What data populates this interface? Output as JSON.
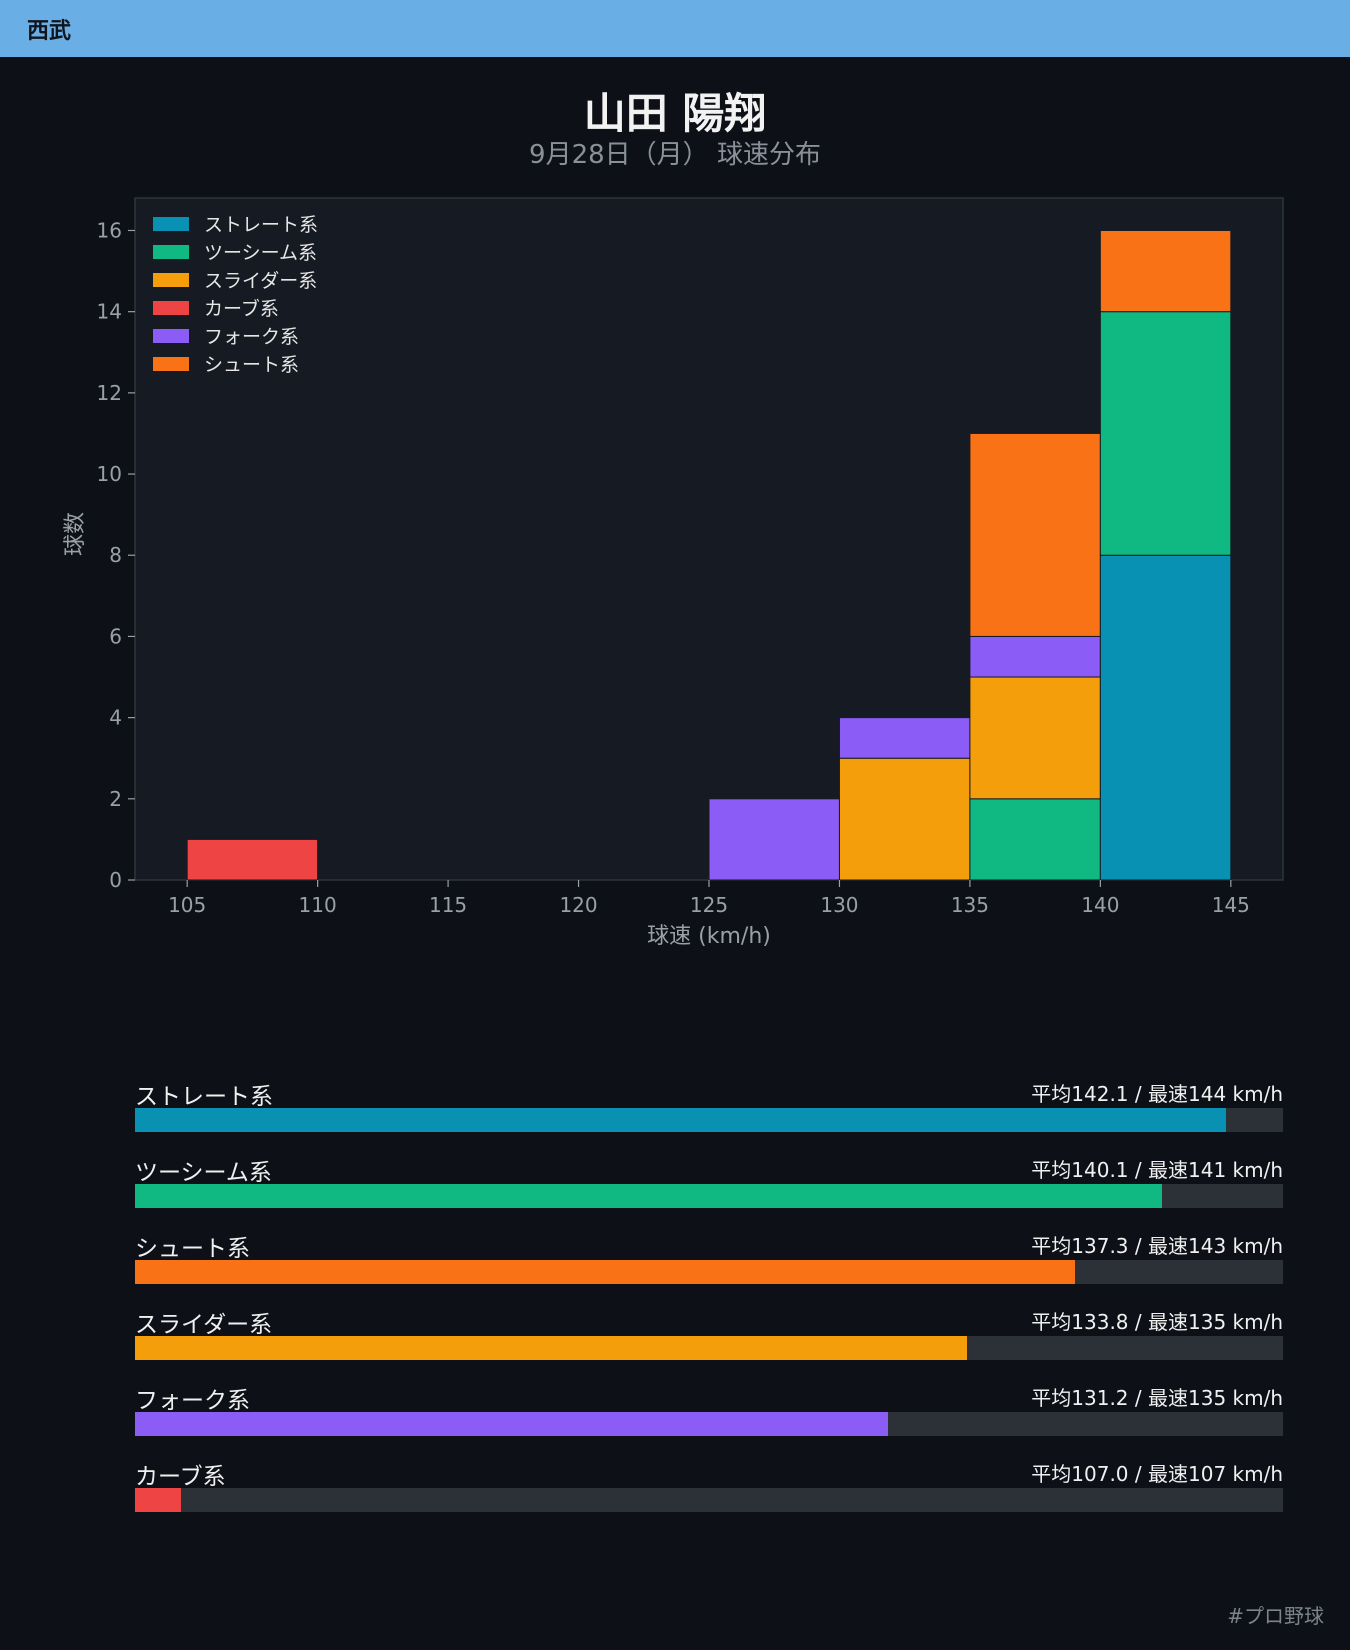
{
  "header": {
    "team": "西武"
  },
  "title": "山田 陽翔",
  "subtitle": "9月28日（月） 球速分布",
  "chart_data": {
    "type": "bar",
    "stacked": true,
    "xlabel": "球速 (km/h)",
    "ylabel": "球数",
    "xlim": [
      103,
      147
    ],
    "ylim": [
      0,
      16.8
    ],
    "xticks": [
      105,
      110,
      115,
      120,
      125,
      130,
      135,
      140,
      145
    ],
    "yticks": [
      0,
      2,
      4,
      6,
      8,
      10,
      12,
      14,
      16
    ],
    "bins": [
      [
        105,
        110
      ],
      [
        110,
        115
      ],
      [
        115,
        120
      ],
      [
        120,
        125
      ],
      [
        125,
        130
      ],
      [
        130,
        135
      ],
      [
        135,
        140
      ],
      [
        140,
        145
      ]
    ],
    "legend_position": "top-left",
    "grid": false,
    "series": [
      {
        "name": "ストレート系",
        "color": "#0891b2",
        "values": [
          0,
          0,
          0,
          0,
          0,
          0,
          0,
          8
        ]
      },
      {
        "name": "ツーシーム系",
        "color": "#10b981",
        "values": [
          0,
          0,
          0,
          0,
          0,
          0,
          2,
          6
        ]
      },
      {
        "name": "スライダー系",
        "color": "#f59e0b",
        "values": [
          0,
          0,
          0,
          0,
          0,
          3,
          3,
          0
        ]
      },
      {
        "name": "カーブ系",
        "color": "#ef4444",
        "values": [
          1,
          0,
          0,
          0,
          0,
          0,
          0,
          0
        ]
      },
      {
        "name": "フォーク系",
        "color": "#8b5cf6",
        "values": [
          0,
          0,
          0,
          0,
          2,
          1,
          1,
          0
        ]
      },
      {
        "name": "シュート系",
        "color": "#f97316",
        "values": [
          0,
          0,
          0,
          0,
          0,
          0,
          5,
          2
        ]
      }
    ]
  },
  "speed_summary": [
    {
      "name": "ストレート系",
      "color": "#0891b2",
      "avg": "142.1",
      "max": "144",
      "label": "平均142.1 / 最速144 km/h",
      "fill": 0.95
    },
    {
      "name": "ツーシーム系",
      "color": "#10b981",
      "avg": "140.1",
      "max": "141",
      "label": "平均140.1 / 最速141 km/h",
      "fill": 0.895
    },
    {
      "name": "シュート系",
      "color": "#f97316",
      "avg": "137.3",
      "max": "143",
      "label": "平均137.3 / 最速143 km/h",
      "fill": 0.819
    },
    {
      "name": "スライダー系",
      "color": "#f59e0b",
      "avg": "133.8",
      "max": "135",
      "label": "平均133.8 / 最速135 km/h",
      "fill": 0.725
    },
    {
      "name": "フォーク系",
      "color": "#8b5cf6",
      "avg": "131.2",
      "max": "135",
      "label": "平均131.2 / 最速135 km/h",
      "fill": 0.656
    },
    {
      "name": "カーブ系",
      "color": "#ef4444",
      "avg": "107.0",
      "max": "107",
      "label": "平均107.0 / 最速107 km/h",
      "fill": 0.04
    }
  ],
  "footer": {
    "hashtag": "#プロ野球"
  }
}
